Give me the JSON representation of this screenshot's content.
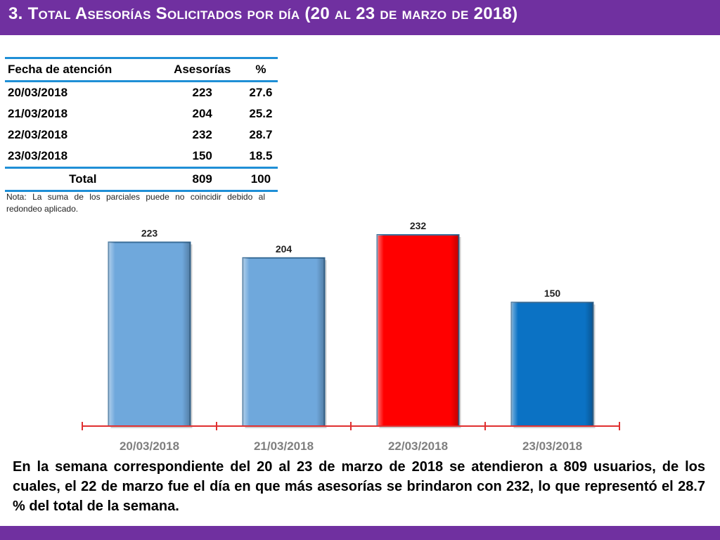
{
  "header": {
    "title": "3.  Total Asesorías Solicitados por día  (20 al 23 de marzo de 2018)"
  },
  "table": {
    "headers": [
      "Fecha de atención",
      "Asesorías",
      "%"
    ],
    "rows": [
      [
        "20/03/2018",
        "223",
        "27.6"
      ],
      [
        "21/03/2018",
        "204",
        "25.2"
      ],
      [
        "22/03/2018",
        "232",
        "28.7"
      ],
      [
        "23/03/2018",
        "150",
        "18.5"
      ]
    ],
    "total": [
      "Total",
      "809",
      "100"
    ]
  },
  "note": "Nota: La suma de los parciales puede no coincidir debido al redondeo aplicado.",
  "chart_data": {
    "type": "bar",
    "title": "",
    "xlabel": "",
    "ylabel": "",
    "categories": [
      "20/03/2018",
      "21/03/2018",
      "22/03/2018",
      "23/03/2018"
    ],
    "values": [
      223,
      204,
      232,
      150
    ],
    "colors": [
      "#6fa8dc",
      "#6fa8dc",
      "#ff0000",
      "#0b72c4"
    ],
    "ylim": [
      0,
      232
    ],
    "grid": false,
    "legend": "none"
  },
  "summary": "En la semana correspondiente del 20 al 23 de marzo de 2018 se atendieron a 809 usuarios, de los cuales, el 22 de marzo fue el día en que más asesorías se brindaron con 232, lo que representó el 28.7 % del total de la semana."
}
